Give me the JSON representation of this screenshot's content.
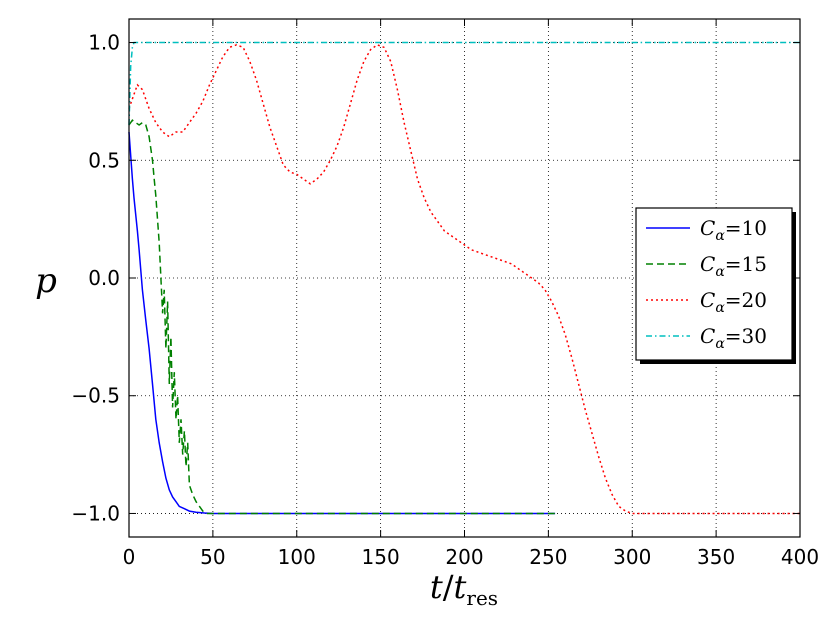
{
  "chart_data": {
    "type": "line",
    "xlabel_main": "t",
    "xlabel_sub": "res",
    "xlabel_denom": "t",
    "ylabel": "p",
    "xlim": [
      0,
      400
    ],
    "ylim": [
      -1.1,
      1.1
    ],
    "xticks": [
      0,
      50,
      100,
      150,
      200,
      250,
      300,
      350,
      400
    ],
    "yticks": [
      -1.0,
      -0.5,
      0.0,
      0.5,
      1.0
    ],
    "ytick_labels": [
      "−1.0",
      "−0.5",
      "0.0",
      "0.5",
      "1.0"
    ],
    "grid": true,
    "legend_position": "right",
    "series": [
      {
        "name": "C",
        "sub": "α",
        "eq": "=10",
        "color": "#0000ff",
        "dash": "",
        "x": [
          0,
          1,
          2,
          3,
          4,
          5,
          6,
          8,
          10,
          12,
          14,
          16,
          18,
          20,
          22,
          24,
          26,
          28,
          30,
          33,
          36,
          40,
          45,
          50,
          60,
          100,
          150,
          200,
          254
        ],
        "y": [
          0.62,
          0.52,
          0.42,
          0.34,
          0.27,
          0.2,
          0.12,
          -0.05,
          -0.18,
          -0.3,
          -0.45,
          -0.6,
          -0.7,
          -0.78,
          -0.85,
          -0.9,
          -0.93,
          -0.95,
          -0.97,
          -0.98,
          -0.99,
          -0.995,
          -0.998,
          -1.0,
          -1.0,
          -1.0,
          -1.0,
          -1.0,
          -1.0
        ]
      },
      {
        "name": "C",
        "sub": "α",
        "eq": "=15",
        "color": "#008000",
        "dash": "7,4",
        "x": [
          0,
          2,
          4,
          6,
          8,
          10,
          12,
          13,
          14,
          15,
          16,
          17,
          18,
          19,
          20,
          21,
          22,
          23,
          24,
          25,
          26,
          27,
          28,
          29,
          30,
          31,
          32,
          33,
          34,
          35,
          36,
          38,
          40,
          42,
          44,
          46,
          50,
          60,
          100,
          150,
          200,
          255
        ],
        "y": [
          0.65,
          0.67,
          0.66,
          0.65,
          0.66,
          0.65,
          0.6,
          0.55,
          0.5,
          0.42,
          0.35,
          0.25,
          0.15,
          0.0,
          -0.15,
          -0.05,
          -0.3,
          -0.1,
          -0.45,
          -0.25,
          -0.55,
          -0.4,
          -0.6,
          -0.5,
          -0.7,
          -0.6,
          -0.75,
          -0.65,
          -0.8,
          -0.7,
          -0.88,
          -0.92,
          -0.95,
          -0.97,
          -0.99,
          -1.0,
          -1.0,
          -1.0,
          -1.0,
          -1.0,
          -1.0,
          -1.0
        ]
      },
      {
        "name": "C",
        "sub": "α",
        "eq": "=20",
        "color": "#ff0000",
        "dash": "2,3",
        "x": [
          0,
          3,
          5,
          8,
          12,
          16,
          20,
          24,
          28,
          32,
          36,
          40,
          44,
          48,
          52,
          56,
          60,
          64,
          68,
          72,
          76,
          80,
          84,
          88,
          92,
          96,
          100,
          104,
          108,
          112,
          116,
          120,
          124,
          128,
          132,
          136,
          140,
          144,
          148,
          152,
          156,
          160,
          164,
          168,
          172,
          176,
          180,
          184,
          188,
          192,
          196,
          200,
          204,
          208,
          212,
          216,
          220,
          224,
          228,
          232,
          236,
          240,
          244,
          248,
          252,
          256,
          260,
          264,
          268,
          272,
          276,
          280,
          284,
          288,
          292,
          296,
          300,
          320,
          350,
          400
        ],
        "y": [
          0.72,
          0.78,
          0.82,
          0.8,
          0.72,
          0.66,
          0.62,
          0.6,
          0.62,
          0.62,
          0.66,
          0.7,
          0.75,
          0.82,
          0.88,
          0.94,
          0.98,
          0.99,
          0.98,
          0.92,
          0.84,
          0.74,
          0.64,
          0.56,
          0.48,
          0.45,
          0.44,
          0.42,
          0.4,
          0.42,
          0.45,
          0.5,
          0.56,
          0.64,
          0.74,
          0.84,
          0.92,
          0.97,
          0.99,
          0.98,
          0.92,
          0.8,
          0.66,
          0.54,
          0.42,
          0.34,
          0.28,
          0.24,
          0.2,
          0.18,
          0.16,
          0.14,
          0.12,
          0.11,
          0.1,
          0.09,
          0.08,
          0.07,
          0.06,
          0.04,
          0.02,
          0.0,
          -0.02,
          -0.05,
          -0.1,
          -0.16,
          -0.24,
          -0.34,
          -0.45,
          -0.56,
          -0.66,
          -0.76,
          -0.85,
          -0.92,
          -0.97,
          -0.99,
          -1.0,
          -1.0,
          -1.0,
          -1.0
        ]
      },
      {
        "name": "C",
        "sub": "α",
        "eq": "=30",
        "color": "#00bfbf",
        "dash": "6,3,1.5,3",
        "x": [
          0,
          1,
          2,
          3,
          5,
          10,
          50,
          100,
          150,
          200,
          250,
          300,
          350,
          400
        ],
        "y": [
          0.65,
          0.9,
          0.98,
          1.0,
          1.0,
          1.0,
          1.0,
          1.0,
          1.0,
          1.0,
          1.0,
          1.0,
          1.0,
          1.0
        ]
      }
    ]
  }
}
